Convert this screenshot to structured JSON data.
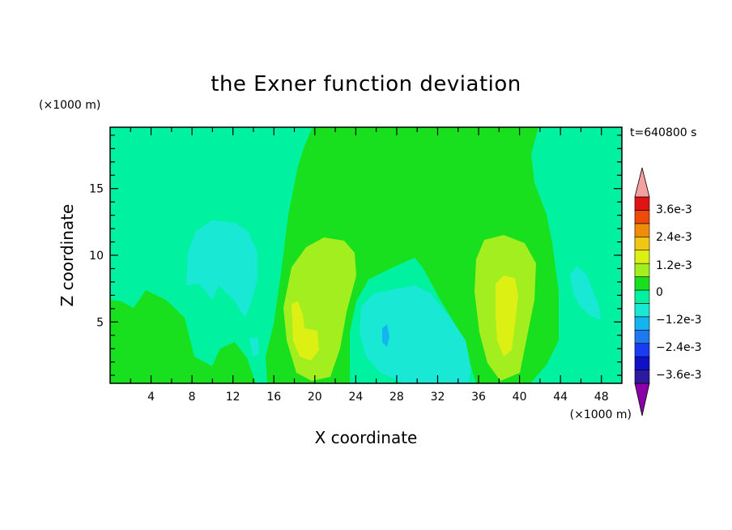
{
  "chart_data": {
    "type": "heatmap",
    "title": "the Exner function deviation",
    "xlabel": "X coordinate",
    "ylabel": "Z coordinate",
    "x_unit": "(×1000 m)",
    "y_unit": "(×1000 m)",
    "time_label": "t=640800 s",
    "xlim": [
      0,
      50
    ],
    "ylim": [
      0.4,
      19.6
    ],
    "x_ticks": [
      "4",
      "8",
      "12",
      "16",
      "20",
      "24",
      "28",
      "32",
      "36",
      "40",
      "44",
      "48"
    ],
    "y_ticks": [
      "5",
      "10",
      "15"
    ],
    "colorbar": {
      "labels": [
        "3.6e-3",
        "2.4e-3",
        "1.2e-3",
        "0",
        "-1.2e-3",
        "-2.4e-3",
        "-3.6e-3"
      ],
      "levels": [
        -0.0042,
        -0.0036,
        -0.003,
        -0.0024,
        -0.0018,
        -0.0012,
        -0.0006,
        0,
        0.0006,
        0.0012,
        0.0018,
        0.0024,
        0.003,
        0.0036,
        0.0042
      ],
      "colors": [
        "#8a00a8",
        "#2d1aa0",
        "#1010c8",
        "#1a3cf0",
        "#1e78f0",
        "#14b4f0",
        "#18e8d4",
        "#00f2a0",
        "#19e01e",
        "#a2ee1e",
        "#dcf014",
        "#f0c814",
        "#f08c0a",
        "#f04a0a",
        "#e01414",
        "#f4a0a0"
      ]
    },
    "regions": [
      {
        "level": "0 to 6e-4",
        "extent": "upper centre and left edge, x 0-18 and 16-44"
      },
      {
        "level": "6e-4 to 1.2e-3",
        "extent": "x 17-24, z 1-11; x 35-41, z 1-11"
      },
      {
        "level": "1.2e-3 to 1.8e-3",
        "extent": "x 18-20, z 2-6; x 37-40, z 2-8"
      },
      {
        "level": "-6e-4 to 0",
        "extent": "background"
      },
      {
        "level": "-1.2e-3 to -6e-4",
        "extent": "x 7-14, z 7-11; x 24-33, z 2-8; x 44-48, z 5-9"
      }
    ]
  }
}
